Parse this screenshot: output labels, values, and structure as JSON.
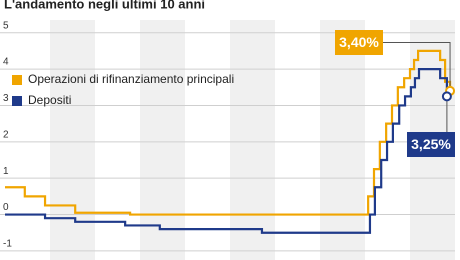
{
  "chart_data": {
    "type": "step-line",
    "title": "L'andamento negli ultimi 10 anni",
    "xlim": [
      0,
      10
    ],
    "ylim": [
      -1.25,
      5.9
    ],
    "yticks": [
      -1,
      0,
      1,
      2,
      3,
      4,
      5
    ],
    "grid": true,
    "legend": "upper-left",
    "series": [
      {
        "name": "Operazioni di rifinanziamento principali",
        "color": "#f0a500",
        "x": [
          0,
          0.44,
          0.89,
          1.56,
          2.78,
          8.07,
          8.2,
          8.33,
          8.47,
          8.6,
          8.73,
          8.87,
          9,
          9.09,
          9.18,
          9.67,
          9.78,
          9.89
        ],
        "values": [
          0.75,
          0.5,
          0.25,
          0.05,
          0,
          0.5,
          1.25,
          2,
          2.5,
          3,
          3.5,
          3.75,
          4,
          4.25,
          4.5,
          4.25,
          3.65,
          3.4
        ],
        "value_labels": [
          null,
          null,
          null,
          null,
          null,
          null,
          null,
          null,
          null,
          null,
          null,
          null,
          null,
          null,
          null,
          null,
          null,
          "3,40%"
        ]
      },
      {
        "name": "Depositi",
        "color": "#1f3a8a",
        "x": [
          0,
          0.89,
          1.56,
          2.67,
          3.44,
          5.71,
          8.11,
          8.22,
          8.36,
          8.49,
          8.62,
          8.76,
          8.89,
          9.02,
          9.11,
          9.2,
          9.67,
          9.82
        ],
        "values": [
          0,
          -0.1,
          -0.2,
          -0.3,
          -0.4,
          -0.5,
          0,
          0.75,
          1.5,
          2,
          2.5,
          3,
          3.25,
          3.5,
          3.75,
          4,
          3.75,
          3.25
        ],
        "value_labels": [
          null,
          null,
          null,
          null,
          null,
          null,
          null,
          null,
          null,
          null,
          null,
          null,
          null,
          null,
          null,
          null,
          null,
          "3,25%"
        ]
      }
    ]
  }
}
